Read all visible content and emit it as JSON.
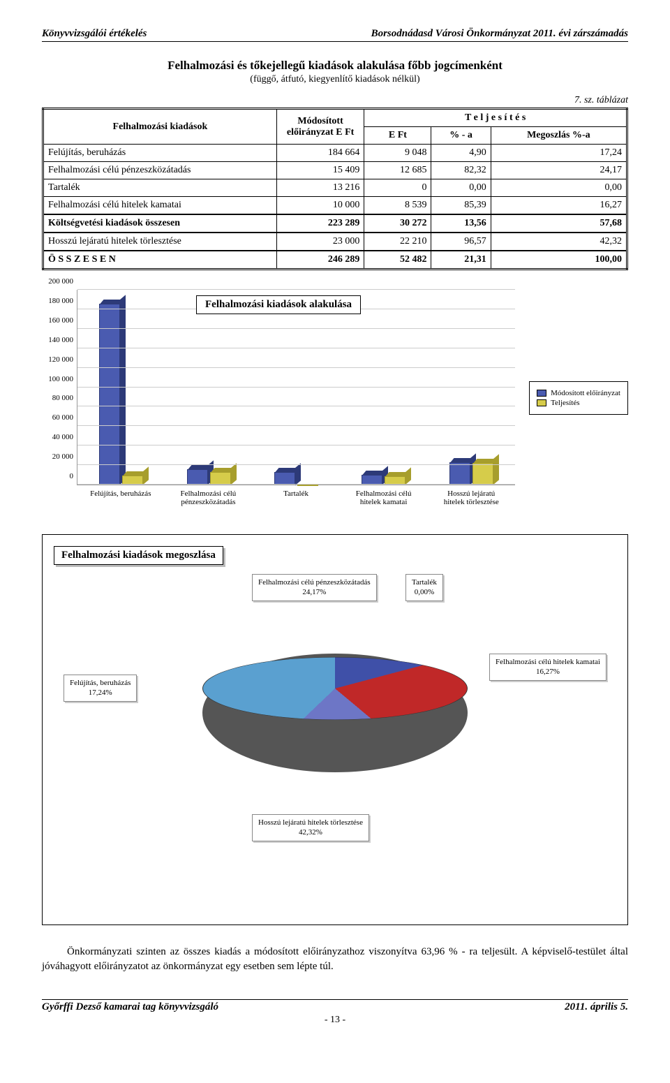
{
  "header": {
    "left": "Könyvvizsgálói értékelés",
    "right": "Borsodnádasd Városi Önkormányzat 2011. évi zárszámadás"
  },
  "section": {
    "title": "Felhalmozási és tőkejellegű kiadások alakulása főbb jogcímenként",
    "subtitle": "(függő, átfutó, kiegyenlítő kiadások nélkül)",
    "table_ref": "7. sz. táblázat"
  },
  "table": {
    "col_left": "Felhalmozási kiadások",
    "col_mod": "Módosított előirányzat E Ft",
    "col_telj": "T e l j e s í t é s",
    "col_eft": "E Ft",
    "col_pct": "% - a",
    "col_meg": "Megoszlás %-a",
    "rows": [
      {
        "label": "Felújítás, beruházás",
        "mod": "184 664",
        "eft": "9 048",
        "pct": "4,90",
        "meg": "17,24"
      },
      {
        "label": "Felhalmozási célú pénzeszközátadás",
        "mod": "15 409",
        "eft": "12 685",
        "pct": "82,32",
        "meg": "24,17"
      },
      {
        "label": "Tartalék",
        "mod": "13 216",
        "eft": "0",
        "pct": "0,00",
        "meg": "0,00"
      },
      {
        "label": "Felhalmozási célú hitelek kamatai",
        "mod": "10 000",
        "eft": "8 539",
        "pct": "85,39",
        "meg": "16,27"
      }
    ],
    "subtotal": {
      "label": "Költségvetési kiadások összesen",
      "mod": "223 289",
      "eft": "30 272",
      "pct": "13,56",
      "meg": "57,68"
    },
    "extra": {
      "label": "Hosszú lejáratú hitelek törlesztése",
      "mod": "23 000",
      "eft": "22 210",
      "pct": "96,57",
      "meg": "42,32"
    },
    "total": {
      "label": "Ö S S Z E S E N",
      "mod": "246 289",
      "eft": "52 482",
      "pct": "21,31",
      "meg": "100,00"
    }
  },
  "bar_chart": {
    "title": "Felhalmozási kiadások alakulása",
    "y_max": 200000,
    "y_step": 20000,
    "y_ticks": [
      "0",
      "20 000",
      "40 000",
      "60 000",
      "80 000",
      "100 000",
      "120 000",
      "140 000",
      "160 000",
      "180 000",
      "200 000"
    ],
    "categories": [
      "Felújítás, beruházás",
      "Felhalmozási célú pénzeszközátadás",
      "Tartalék",
      "Felhalmozási célú hitelek kamatai",
      "Hosszú lejáratú hitelek törlesztése"
    ],
    "series": [
      {
        "name": "Módosított előirányzat",
        "color": "#4a5bb0",
        "color_dark": "#2d3a78",
        "values": [
          184664,
          15409,
          13216,
          10000,
          23000
        ]
      },
      {
        "name": "Teljesítés",
        "color": "#d6cc4a",
        "color_dark": "#a79e2c",
        "values": [
          9048,
          12685,
          0,
          8539,
          22210
        ]
      }
    ]
  },
  "pie_chart": {
    "title": "Felhalmozási kiadások megoszlása",
    "slices": [
      {
        "label": "Felújítás, beruházás",
        "pct_label": "17,24%",
        "pct": 17.24,
        "color": "#3f50a8"
      },
      {
        "label": "Felhalmozási célú pénzeszközátadás",
        "pct_label": "24,17%",
        "pct": 24.17,
        "color": "#c02828"
      },
      {
        "label": "Tartalék",
        "pct_label": "0,00%",
        "pct": 0.0,
        "color": "#dacd44"
      },
      {
        "label": "Felhalmozási célú hitelek kamatai",
        "pct_label": "16,27%",
        "pct": 16.27,
        "color": "#6d76c6"
      },
      {
        "label": "Hosszú lejáratú hitelek törlesztése",
        "pct_label": "42,32%",
        "pct": 42.32,
        "color": "#5aa0d0"
      }
    ]
  },
  "body_text": {
    "p1": "Önkormányzati szinten az összes kiadás a módosított előirányzathoz viszonyítva 63,96 % - ra teljesült. A képviselő-testület által jóváhagyott előirányzatot az önkormányzat egy esetben sem lépte túl."
  },
  "footer": {
    "left": "Győrffi Dezső kamarai tag könyvvizsgáló",
    "right": "2011. április 5.",
    "page": "- 13 -"
  }
}
